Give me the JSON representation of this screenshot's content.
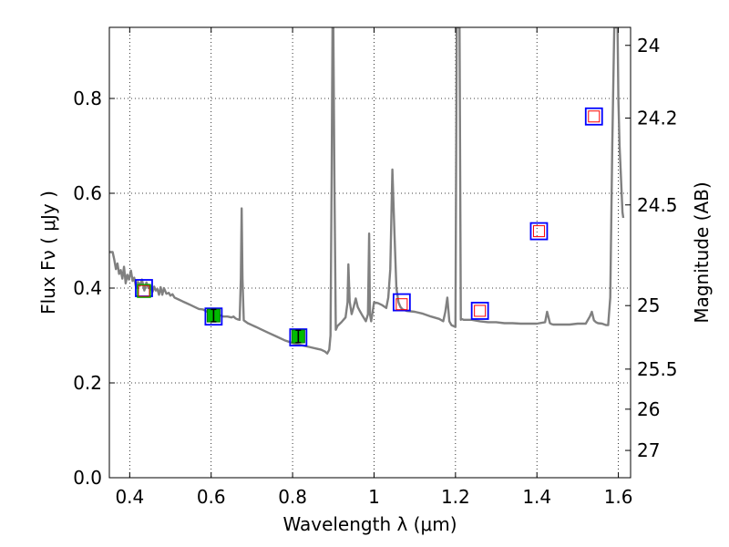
{
  "chart_data": {
    "type": "line",
    "xlabel": "Wavelength  λ (μm)",
    "ylabel": "Flux  Fν  ( μJy )",
    "y2label": "Magnitude (AB)",
    "xlim": [
      0.35,
      1.63
    ],
    "ylim": [
      0.0,
      0.95
    ],
    "grid": true,
    "xticks": [
      0.4,
      0.6,
      0.8,
      1.0,
      1.2,
      1.4,
      1.6
    ],
    "xtick_labels": [
      "0.4",
      "0.6",
      "0.8",
      "1",
      "1.2",
      "1.4",
      "1.6"
    ],
    "yticks": [
      0.0,
      0.2,
      0.4,
      0.6,
      0.8
    ],
    "ytick_labels": [
      "0.0",
      "0.2",
      "0.4",
      "0.6",
      "0.8"
    ],
    "mag_ticks": [
      {
        "mag": 24,
        "label": "24"
      },
      {
        "mag": 24.2,
        "label": "24.2"
      },
      {
        "mag": 24.5,
        "label": "24.5"
      },
      {
        "mag": 25,
        "label": "25"
      },
      {
        "mag": 25.5,
        "label": "25.5"
      },
      {
        "mag": 26,
        "label": "26"
      },
      {
        "mag": 27,
        "label": "27"
      }
    ],
    "series": [
      {
        "kind": "template-spectrum",
        "color": "#808080",
        "x": [
          0.35,
          0.358,
          0.362,
          0.366,
          0.37,
          0.374,
          0.378,
          0.382,
          0.386,
          0.39,
          0.394,
          0.398,
          0.403,
          0.407,
          0.411,
          0.416,
          0.42,
          0.425,
          0.43,
          0.436,
          0.441,
          0.446,
          0.452,
          0.456,
          0.46,
          0.464,
          0.468,
          0.472,
          0.476,
          0.48,
          0.484,
          0.49,
          0.496,
          0.5,
          0.505,
          0.51,
          0.52,
          0.53,
          0.54,
          0.55,
          0.56,
          0.57,
          0.58,
          0.59,
          0.6,
          0.61,
          0.62,
          0.63,
          0.64,
          0.65,
          0.655,
          0.66,
          0.665,
          0.67,
          0.673,
          0.675,
          0.677,
          0.68,
          0.69,
          0.7,
          0.71,
          0.72,
          0.74,
          0.76,
          0.78,
          0.8,
          0.82,
          0.84,
          0.86,
          0.87,
          0.88,
          0.885,
          0.89,
          0.893,
          0.896,
          0.898,
          0.9,
          0.903,
          0.906,
          0.91,
          0.92,
          0.93,
          0.935,
          0.937,
          0.94,
          0.945,
          0.95,
          0.955,
          0.96,
          0.965,
          0.97,
          0.98,
          0.985,
          0.988,
          0.99,
          0.993,
          1.0,
          1.01,
          1.02,
          1.03,
          1.035,
          1.04,
          1.045,
          1.05,
          1.055,
          1.06,
          1.065,
          1.07,
          1.08,
          1.1,
          1.12,
          1.14,
          1.16,
          1.17,
          1.175,
          1.18,
          1.185,
          1.19,
          1.2,
          1.203,
          1.205,
          1.208,
          1.21,
          1.213,
          1.215,
          1.22,
          1.24,
          1.26,
          1.28,
          1.3,
          1.32,
          1.34,
          1.36,
          1.38,
          1.4,
          1.42,
          1.425,
          1.428,
          1.432,
          1.436,
          1.44,
          1.46,
          1.48,
          1.5,
          1.52,
          1.53,
          1.535,
          1.54,
          1.545,
          1.55,
          1.56,
          1.57,
          1.575,
          1.58,
          1.585,
          1.59,
          1.593,
          1.596,
          1.598,
          1.6,
          1.603,
          1.606,
          1.61,
          1.612
        ],
        "values": [
          0.476,
          0.476,
          0.46,
          0.44,
          0.452,
          0.43,
          0.438,
          0.42,
          0.445,
          0.41,
          0.428,
          0.418,
          0.437,
          0.415,
          0.422,
          0.4,
          0.413,
          0.405,
          0.418,
          0.395,
          0.412,
          0.4,
          0.404,
          0.392,
          0.403,
          0.395,
          0.398,
          0.386,
          0.402,
          0.386,
          0.4,
          0.388,
          0.39,
          0.384,
          0.387,
          0.38,
          0.376,
          0.372,
          0.368,
          0.364,
          0.36,
          0.356,
          0.355,
          0.35,
          0.347,
          0.345,
          0.343,
          0.34,
          0.34,
          0.338,
          0.34,
          0.336,
          0.334,
          0.333,
          0.42,
          0.568,
          0.42,
          0.332,
          0.326,
          0.322,
          0.318,
          0.314,
          0.306,
          0.298,
          0.29,
          0.284,
          0.28,
          0.276,
          0.272,
          0.27,
          0.266,
          0.262,
          0.27,
          0.3,
          0.65,
          0.95,
          0.95,
          0.6,
          0.312,
          0.32,
          0.328,
          0.338,
          0.37,
          0.45,
          0.372,
          0.345,
          0.36,
          0.378,
          0.36,
          0.352,
          0.344,
          0.33,
          0.345,
          0.515,
          0.345,
          0.33,
          0.37,
          0.368,
          0.364,
          0.358,
          0.38,
          0.44,
          0.65,
          0.52,
          0.4,
          0.37,
          0.36,
          0.355,
          0.352,
          0.35,
          0.346,
          0.34,
          0.335,
          0.33,
          0.35,
          0.38,
          0.33,
          0.322,
          0.318,
          0.95,
          0.95,
          0.95,
          0.95,
          0.333,
          0.335,
          0.333,
          0.333,
          0.33,
          0.328,
          0.328,
          0.326,
          0.326,
          0.325,
          0.325,
          0.325,
          0.328,
          0.35,
          0.34,
          0.326,
          0.324,
          0.323,
          0.323,
          0.323,
          0.325,
          0.325,
          0.34,
          0.35,
          0.332,
          0.328,
          0.326,
          0.325,
          0.322,
          0.322,
          0.38,
          0.7,
          0.95,
          0.95,
          0.95,
          0.95,
          0.8,
          0.7,
          0.64,
          0.56,
          0.548
        ]
      }
    ],
    "photometry": [
      {
        "x": 0.435,
        "flux": 0.4
      },
      {
        "x": 0.606,
        "flux": 0.34
      },
      {
        "x": 0.814,
        "flux": 0.296
      },
      {
        "x": 1.068,
        "flux": 0.37
      },
      {
        "x": 1.26,
        "flux": 0.352
      },
      {
        "x": 1.405,
        "flux": 0.52
      },
      {
        "x": 1.54,
        "flux": 0.762
      }
    ],
    "model_points": [
      {
        "x": 0.435,
        "flux": 0.394
      },
      {
        "x": 1.068,
        "flux": 0.366
      },
      {
        "x": 1.26,
        "flux": 0.352
      },
      {
        "x": 1.405,
        "flux": 0.52
      },
      {
        "x": 1.54,
        "flux": 0.762
      }
    ],
    "detections": [
      {
        "x": 0.606,
        "flux": 0.342,
        "err": 0.013
      },
      {
        "x": 0.814,
        "flux": 0.298,
        "err": 0.013
      }
    ],
    "colors": {
      "spectrum": "#808080",
      "photometry_box": "#0000ff",
      "model_box": "#ff0000",
      "detection_fill": "#00bb00",
      "upper_limit_fill": "#00aa00"
    }
  }
}
